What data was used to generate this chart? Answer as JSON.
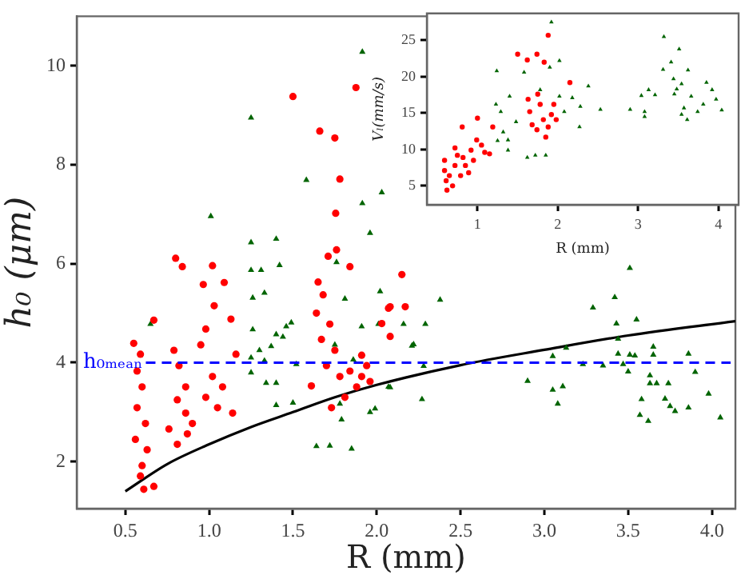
{
  "chart_data": [
    {
      "type": "scatter",
      "xlabel": "R (mm)",
      "ylabel": "h₀ (μm)",
      "xlim": [
        0.21,
        4.14
      ],
      "ylim": [
        1.05,
        11.0
      ],
      "xticks": [
        {
          "value": 0.5,
          "label": "0.5"
        },
        {
          "value": 1.0,
          "label": "1.0"
        },
        {
          "value": 1.5,
          "label": "1.5"
        },
        {
          "value": 2.0,
          "label": "2.0"
        },
        {
          "value": 2.5,
          "label": "2.5"
        },
        {
          "value": 3.0,
          "label": "3.0"
        },
        {
          "value": 3.5,
          "label": "3.5"
        },
        {
          "value": 4.0,
          "label": "4.0"
        }
      ],
      "yticks": [
        2,
        4,
        6,
        8,
        10
      ],
      "grid": false,
      "legend": false,
      "ref_lines": [
        {
          "axis": "y",
          "value": 4,
          "label": "h₀ₘₑₐₙ",
          "color": "#0000ff",
          "line_style": "dashed"
        }
      ],
      "series": [
        {
          "color": "#ff0000",
          "marker": "circle",
          "x": [
            1.5,
            1.876,
            1.66,
            1.75,
            1.78,
            1.755,
            1.71,
            1.76,
            1.84,
            0.8,
            0.84,
            1.02,
            0.965,
            1.09,
            1.03,
            1.13,
            2.15,
            0.67,
            0.55,
            0.59,
            0.57,
            0.6,
            0.57,
            0.62,
            0.56,
            0.63,
            0.6,
            0.59,
            0.61,
            0.67,
            0.79,
            0.82,
            0.86,
            0.81,
            0.86,
            0.76,
            0.81,
            0.9,
            0.95,
            0.98,
            1.02,
            0.98,
            1.05,
            1.08,
            1.14,
            1.16,
            0.87,
            1.65,
            1.68,
            1.64,
            1.72,
            1.67,
            1.75,
            1.7,
            1.78,
            1.84,
            1.91,
            1.94,
            1.88,
            1.81,
            1.96,
            1.61,
            2.07,
            1.73,
            1.91,
            2.08,
            2.17,
            2.08,
            2.03
          ],
          "values": [
            9.38,
            9.56,
            8.68,
            8.54,
            7.71,
            7.02,
            6.15,
            6.28,
            5.94,
            6.11,
            5.94,
            5.96,
            5.58,
            5.62,
            5.15,
            4.88,
            5.78,
            4.86,
            4.39,
            4.17,
            3.83,
            3.51,
            3.09,
            2.77,
            2.45,
            2.24,
            1.92,
            1.71,
            1.44,
            1.5,
            4.25,
            3.94,
            3.51,
            3.25,
            2.98,
            2.66,
            2.35,
            2.77,
            4.36,
            4.68,
            3.72,
            3.3,
            3.09,
            3.51,
            2.98,
            4.17,
            2.56,
            5.63,
            5.37,
            5.0,
            4.78,
            4.47,
            4.25,
            3.94,
            3.72,
            3.83,
            4.15,
            3.94,
            3.51,
            3.3,
            3.62,
            3.53,
            5.1,
            3.09,
            3.72,
            5.13,
            5.13,
            4.53,
            4.79
          ]
        },
        {
          "color": "#006400",
          "marker": "triangle",
          "x": [
            1.914,
            1.25,
            1.58,
            1.914,
            2.03,
            1.01,
            1.25,
            1.4,
            1.25,
            1.31,
            1.42,
            1.33,
            1.26,
            1.96,
            1.76,
            1.26,
            1.4,
            1.44,
            1.49,
            1.46,
            1.37,
            1.3,
            1.25,
            1.33,
            1.52,
            1.25,
            1.34,
            1.4,
            1.4,
            1.5,
            1.64,
            1.72,
            1.85,
            1.78,
            1.79,
            1.96,
            1.99,
            2.02,
            1.91,
            2.01,
            1.81,
            1.75,
            1.86,
            2.16,
            2.07,
            2.21,
            2.29,
            0.65,
            2.378,
            2.22,
            2.28,
            2.27,
            2.08,
            2.9,
            3.05,
            3.05,
            3.11,
            3.08,
            3.13,
            3.23,
            3.29,
            3.35,
            3.42,
            3.43,
            3.44,
            3.44,
            3.47,
            3.5,
            3.51,
            3.51,
            3.54,
            3.55,
            3.63,
            3.63,
            3.65,
            3.65,
            3.67,
            3.58,
            3.57,
            3.62,
            3.72,
            3.74,
            3.75,
            3.78,
            3.86,
            3.86,
            3.9,
            3.98,
            4.05
          ],
          "values": [
            10.28,
            8.95,
            7.69,
            7.22,
            7.44,
            6.96,
            6.43,
            6.5,
            5.87,
            5.87,
            5.97,
            5.41,
            5.31,
            6.62,
            6.03,
            4.67,
            4.57,
            4.52,
            4.81,
            4.73,
            4.33,
            4.25,
            4.1,
            4.04,
            3.97,
            3.8,
            3.59,
            3.59,
            3.14,
            3.19,
            2.31,
            2.32,
            2.26,
            3.17,
            2.85,
            3.0,
            3.07,
            5.44,
            4.73,
            4.78,
            5.29,
            4.36,
            4.06,
            4.78,
            3.51,
            4.34,
            4.78,
            4.78,
            5.27,
            4.37,
            3.93,
            3.26,
            3.5,
            3.63,
            4.13,
            3.45,
            3.52,
            3.17,
            4.3,
            3.97,
            5.11,
            3.94,
            5.32,
            4.79,
            4.48,
            4.18,
            3.97,
            3.82,
            5.91,
            4.16,
            4.14,
            4.87,
            3.74,
            3.58,
            4.32,
            4.16,
            3.58,
            3.26,
            2.94,
            2.82,
            3.27,
            3.58,
            3.12,
            3.02,
            3.09,
            4.18,
            3.81,
            3.37,
            2.89
          ]
        },
        {
          "type": "line",
          "color": "#000000",
          "marker": "none",
          "line_style": "solid",
          "x": [
            0.5,
            0.75,
            1.0,
            1.25,
            1.5,
            1.75,
            2.0,
            2.5,
            3.0,
            3.5,
            4.14
          ],
          "values": [
            1.4,
            1.95,
            2.35,
            2.7,
            3.0,
            3.3,
            3.55,
            3.95,
            4.26,
            4.55,
            4.84
          ]
        }
      ]
    },
    {
      "type": "scatter",
      "xlabel": "R (mm)",
      "ylabel": "Vₗ(mm/s)",
      "xlim": [
        0.37,
        4.25
      ],
      "ylim": [
        2.4,
        28.7
      ],
      "xticks": [
        1,
        2,
        3,
        4
      ],
      "yticks": [
        5,
        10,
        15,
        20,
        25
      ],
      "grid": false,
      "legend": false,
      "series": [
        {
          "color": "#ff0000",
          "marker": "circle",
          "x": [
            1.88,
            1.5,
            1.74,
            1.62,
            1.83,
            1.0,
            0.81,
            1.19,
            0.59,
            0.59,
            0.61,
            0.62,
            0.69,
            0.72,
            0.85,
            0.75,
            0.92,
            0.99,
            1.05,
            0.89,
            0.82,
            0.95,
            1.09,
            0.65,
            1.15,
            1.63,
            1.65,
            1.75,
            1.78,
            1.82,
            1.88,
            1.92,
            1.98,
            1.74,
            1.85,
            2.15,
            1.68,
            1.95,
            0.79,
            0.72
          ],
          "values": [
            25.7,
            23.1,
            23.1,
            22.3,
            22.0,
            14.3,
            13.1,
            13.1,
            8.5,
            7.1,
            5.7,
            4.4,
            5.0,
            7.8,
            7.8,
            9.2,
            9.9,
            11.3,
            10.6,
            6.8,
            8.9,
            8.5,
            9.6,
            6.4,
            9.4,
            16.9,
            15.2,
            17.6,
            16.2,
            14.1,
            13.1,
            14.8,
            14.1,
            12.7,
            11.7,
            19.2,
            13.4,
            16.2,
            6.4,
            10.2
          ]
        },
        {
          "color": "#006400",
          "marker": "triangle",
          "x": [
            1.92,
            2.02,
            1.9,
            1.24,
            1.58,
            1.78,
            1.23,
            1.4,
            1.29,
            1.48,
            1.32,
            1.38,
            1.25,
            1.38,
            1.62,
            1.72,
            1.85,
            2.38,
            2.18,
            2.28,
            2.27,
            2.53,
            2.9,
            3.04,
            3.08,
            3.13,
            3.08,
            3.21,
            3.31,
            3.32,
            3.41,
            3.51,
            3.44,
            3.48,
            3.54,
            3.57,
            3.61,
            3.54,
            3.66,
            3.74,
            3.81,
            3.85,
            3.92,
            3.97,
            4.04,
            3.62,
            3.45,
            2.02,
            2.08
          ],
          "values": [
            27.5,
            22.2,
            21.3,
            20.8,
            20.6,
            18.2,
            16.2,
            17.3,
            15.2,
            13.8,
            12.4,
            11.3,
            11.2,
            9.9,
            8.9,
            9.2,
            9.2,
            18.7,
            17.1,
            15.9,
            13.1,
            15.5,
            15.5,
            17.4,
            15.2,
            18.2,
            14.5,
            17.5,
            21.0,
            25.5,
            22.0,
            23.8,
            19.7,
            18.3,
            19.0,
            15.7,
            14.1,
            14.8,
            17.3,
            15.2,
            16.2,
            19.2,
            18.2,
            16.9,
            15.4,
            20.9,
            17.6,
            17.3,
            15.2
          ]
        }
      ]
    }
  ]
}
